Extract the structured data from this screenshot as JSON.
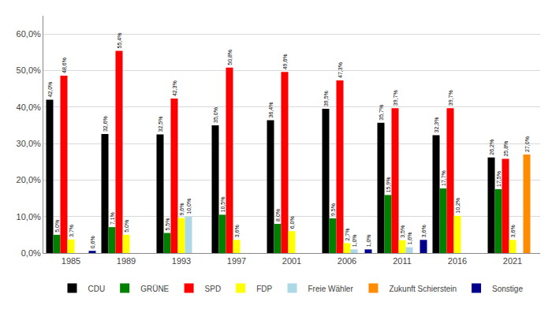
{
  "chart_data": {
    "type": "bar",
    "categories": [
      "1985",
      "1989",
      "1993",
      "1997",
      "2001",
      "2006",
      "2011",
      "2016",
      "2021"
    ],
    "series": [
      {
        "name": "CDU",
        "color": "#000000",
        "values": [
          42.0,
          32.6,
          32.5,
          35.0,
          36.4,
          39.5,
          35.7,
          32.3,
          26.2
        ],
        "value_labels": [
          "42,0%",
          "32,6%",
          "32,5%",
          "35,0%",
          "36,4%",
          "39,5%",
          "35,7%",
          "32,3%",
          "26,2%"
        ]
      },
      {
        "name": "GRÜNE",
        "color": "#008000",
        "values": [
          5.0,
          7.1,
          5.5,
          10.5,
          8.0,
          9.5,
          15.9,
          17.7,
          17.5
        ],
        "value_labels": [
          "5,0%",
          "7,1%",
          "5,5%",
          "10,5%",
          "8,0%",
          "9,5%",
          "15,9%",
          "17,7%",
          "17,5%"
        ]
      },
      {
        "name": "SPD",
        "color": "#ff0000",
        "values": [
          48.6,
          55.4,
          42.3,
          50.8,
          49.6,
          47.3,
          39.7,
          39.7,
          25.8
        ],
        "value_labels": [
          "48,6%",
          "55,4%",
          "42,3%",
          "50,8%",
          "49,6%",
          "47,3%",
          "39,7%",
          "39,7%",
          "25,8%"
        ]
      },
      {
        "name": "FDP",
        "color": "#ffff00",
        "values": [
          3.7,
          5.0,
          9.6,
          3.6,
          6.0,
          2.7,
          3.5,
          10.2,
          3.6
        ],
        "value_labels": [
          "3,7%",
          "5,0%",
          "9,6%",
          "3,6%",
          "6,0%",
          "2,7%",
          "3,5%",
          "10,2%",
          "3,6%"
        ]
      },
      {
        "name": "Freie Wähler",
        "color": "#add8e6",
        "values": [
          0.0,
          0.0,
          10.0,
          0.0,
          0.0,
          1.0,
          1.6,
          0.0,
          0.0
        ],
        "value_labels": [
          null,
          null,
          "10,0%",
          null,
          null,
          "1,0%",
          "1,6%",
          null,
          null
        ]
      },
      {
        "name": "Zukunft Schierstein",
        "color": "#ff8c00",
        "values": [
          0.0,
          0.0,
          0.0,
          0.0,
          0.0,
          0.0,
          0.0,
          0.0,
          27.0
        ],
        "value_labels": [
          null,
          null,
          null,
          null,
          null,
          null,
          null,
          null,
          "27,0%"
        ]
      },
      {
        "name": "Sonstige",
        "color": "#00008b",
        "values": [
          0.6,
          0.0,
          0.0,
          0.0,
          0.0,
          1.0,
          3.6,
          0.0,
          0.0
        ],
        "value_labels": [
          "0,6%",
          null,
          null,
          null,
          null,
          "1,0%",
          "3,6%",
          null,
          null
        ]
      }
    ],
    "ylim": [
      0,
      65
    ],
    "yticks": [
      {
        "value": 0,
        "label": "0,0%"
      },
      {
        "value": 10,
        "label": "10,0%"
      },
      {
        "value": 20,
        "label": "20,0%"
      },
      {
        "value": 30,
        "label": "30,0%"
      },
      {
        "value": 40,
        "label": "40,0%"
      },
      {
        "value": 50,
        "label": "50,0%"
      },
      {
        "value": 60,
        "label": "60,0%"
      }
    ],
    "grid": true,
    "legend": "bottom",
    "data_labels": true
  }
}
